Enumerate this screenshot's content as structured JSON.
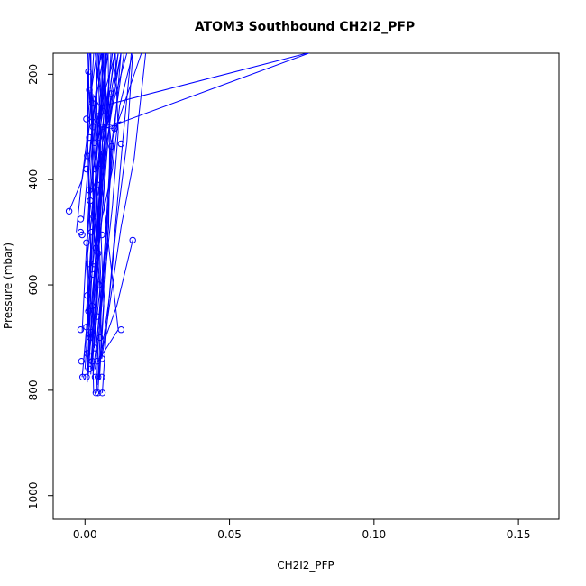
{
  "chart_data": {
    "type": "line",
    "title": "ATOM3 Southbound CH2I2_PFP",
    "xlabel": "CH2I2_PFP",
    "ylabel": "Pressure (mbar)",
    "xlim": [
      -0.011,
      0.164
    ],
    "ylim": [
      1045,
      160
    ],
    "y_reversed": true,
    "x_ticks": [
      0.0,
      0.05,
      0.1,
      0.15
    ],
    "x_tick_labels": [
      "0.00",
      "0.05",
      "0.10",
      "0.15"
    ],
    "y_ticks": [
      200,
      400,
      600,
      800,
      1000
    ],
    "y_tick_labels": [
      "200",
      "400",
      "600",
      "800",
      "1000"
    ],
    "grid": false,
    "legend": "none",
    "color": "#0000ff",
    "profiles": [
      {
        "x": [
          0.0008,
          0.002,
          0.0035,
          0.005,
          0.006
        ],
        "y": [
          775,
          680,
          560,
          420,
          160
        ]
      },
      {
        "x": [
          0.0012,
          0.0025,
          0.004,
          0.0055,
          0.0045
        ],
        "y": [
          770,
          650,
          520,
          380,
          160
        ]
      },
      {
        "x": [
          -0.001,
          0.0005,
          0.0015,
          0.003,
          0.002
        ],
        "y": [
          775,
          690,
          600,
          460,
          160
        ]
      },
      {
        "x": [
          0.0,
          0.0012,
          0.002,
          0.0008,
          0.0015
        ],
        "y": [
          760,
          660,
          540,
          300,
          160
        ]
      },
      {
        "x": [
          0.002,
          0.0035,
          0.005,
          0.007,
          0.009
        ],
        "y": [
          750,
          640,
          500,
          330,
          160
        ]
      },
      {
        "x": [
          0.004,
          0.0045,
          0.0065,
          0.009,
          0.0195
        ],
        "y": [
          805,
          720,
          560,
          330,
          160
        ]
      },
      {
        "x": [
          0.003,
          0.0025,
          0.004,
          0.006,
          0.0105
        ],
        "y": [
          805,
          700,
          520,
          330,
          160
        ]
      },
      {
        "x": [
          0.006,
          0.0075,
          0.01,
          0.013,
          0.016
        ],
        "y": [
          805,
          680,
          520,
          330,
          160
        ]
      },
      {
        "x": [
          -0.0005,
          0.0015,
          0.003,
          0.0045,
          0.0075
        ],
        "y": [
          745,
          620,
          480,
          300,
          160
        ]
      },
      {
        "x": [
          0.0015,
          0.0045,
          0.0025,
          0.0065,
          0.0035
        ],
        "y": [
          730,
          600,
          450,
          280,
          160
        ]
      },
      {
        "x": [
          -0.001,
          0.0,
          0.0015,
          0.003,
          0.005
        ],
        "y": [
          690,
          580,
          430,
          280,
          160
        ]
      },
      {
        "x": [
          0.0005,
          0.002,
          0.0035,
          0.0055,
          0.008
        ],
        "y": [
          720,
          560,
          400,
          260,
          160
        ]
      },
      {
        "x": [
          0.001,
          0.0035,
          0.006,
          0.0085,
          0.0115
        ],
        "y": [
          745,
          610,
          460,
          290,
          160
        ]
      },
      {
        "x": [
          0.0025,
          0.004,
          0.005,
          0.007,
          0.0065
        ],
        "y": [
          760,
          630,
          470,
          310,
          160
        ]
      },
      {
        "x": [
          0.0045,
          0.0055,
          0.0075,
          0.0095,
          0.0135
        ],
        "y": [
          790,
          660,
          500,
          320,
          160
        ]
      },
      {
        "x": [
          0.0015,
          0.0005,
          0.003,
          0.002,
          0.004
        ],
        "y": [
          700,
          560,
          440,
          240,
          160
        ]
      },
      {
        "x": [
          0.002,
          0.0045,
          0.0025,
          0.0055,
          0.0045
        ],
        "y": [
          770,
          560,
          410,
          230,
          160
        ]
      },
      {
        "x": [
          0.001,
          0.0022,
          0.004,
          0.0025,
          0.0065
        ],
        "y": [
          740,
          600,
          420,
          290,
          160
        ]
      },
      {
        "x": [
          -0.003,
          -0.0015,
          0.0005,
          0.0015,
          0.001
        ],
        "y": [
          500,
          420,
          330,
          250,
          160
        ]
      },
      {
        "x": [
          -0.0055,
          -0.001,
          0.001,
          0.002,
          0.003
        ],
        "y": [
          460,
          400,
          330,
          250,
          160
        ]
      },
      {
        "x": [
          -0.0005,
          0.001,
          0.0025,
          0.004,
          0.0055
        ],
        "y": [
          475,
          380,
          300,
          220,
          160
        ]
      },
      {
        "x": [
          0.0035,
          0.006,
          0.0095,
          0.012,
          0.0165
        ],
        "y": [
          560,
          470,
          380,
          260,
          160
        ]
      },
      {
        "x": [
          0.0045,
          0.0058,
          0.0078,
          0.009,
          0.006
        ],
        "y": [
          800,
          690,
          520,
          330,
          160
        ]
      },
      {
        "x": [
          0.002,
          0.0035,
          0.005,
          0.006,
          0.0145
        ],
        "y": [
          760,
          650,
          500,
          330,
          160
        ]
      },
      {
        "x": [
          0.0008,
          0.002,
          0.0045,
          0.0035,
          0.0105
        ],
        "y": [
          785,
          600,
          470,
          300,
          160
        ]
      },
      {
        "x": [
          0.0035,
          0.0065,
          0.0095,
          0.0115,
          0.0105
        ],
        "y": [
          760,
          600,
          450,
          310,
          160
        ]
      },
      {
        "x": [
          0.0015,
          0.0008,
          0.0028,
          0.0042,
          0.0058
        ],
        "y": [
          680,
          520,
          360,
          200,
          160
        ]
      },
      {
        "x": [
          0.0025,
          0.0055,
          0.004,
          0.006,
          0.0075
        ],
        "y": [
          745,
          590,
          420,
          250,
          160
        ]
      },
      {
        "x": [
          0.0032,
          0.0048,
          0.0015,
          0.0062,
          0.0072
        ],
        "y": [
          720,
          580,
          430,
          270,
          160
        ]
      },
      {
        "x": [
          0.0005,
          0.002,
          0.0012,
          0.0028,
          0.0018
        ],
        "y": [
          650,
          530,
          400,
          270,
          160
        ]
      },
      {
        "x": [
          0.0055,
          0.0085,
          0.011,
          0.0145,
          0.0165
        ],
        "y": [
          740,
          620,
          480,
          330,
          160
        ]
      },
      {
        "x": [
          0.0012,
          0.0038,
          0.0058,
          0.0075,
          0.0125
        ],
        "y": [
          700,
          540,
          380,
          290,
          160
        ]
      },
      {
        "x": [
          0.005,
          0.0065,
          0.0055,
          0.0075,
          0.007
        ],
        "y": [
          780,
          640,
          500,
          330,
          160
        ]
      },
      {
        "x": [
          0.0028,
          0.0052,
          0.0082,
          0.0085,
          0.008
        ],
        "y": [
          770,
          650,
          490,
          350,
          160
        ]
      },
      {
        "x": [
          0.0058,
          0.009,
          0.0125,
          0.017,
          0.021
        ],
        "y": [
          740,
          620,
          490,
          360,
          160
        ]
      },
      {
        "x": [
          0.0165,
          0.011,
          0.0058,
          0.0045,
          0.0075
        ],
        "y": [
          515,
          640,
          720,
          500,
          160
        ]
      },
      {
        "x": [
          0.0045,
          0.0115,
          0.006,
          0.0042,
          0.004
        ],
        "y": [
          745,
          685,
          420,
          300,
          160
        ]
      },
      {
        "x": [
          0.0038,
          0.0125,
          0.0075,
          0.0035,
          0.0018
        ],
        "y": [
          728,
          157,
          330,
          560,
          560
        ]
      },
      {
        "x": [
          0.0055,
          0.0095,
          0.0125,
          0.0058,
          0.0042,
          0.0038,
          0.0035
        ],
        "y": [
          300,
          303,
          290,
          300,
          420,
          520,
          560
        ]
      },
      {
        "x": [
          0.0058,
          0.079,
          0.0062,
          0.0045
        ],
        "y": [
          305,
          157,
          260,
          300
        ]
      },
      {
        "x": [
          0.0015,
          0.0025,
          0.003,
          0.0058,
          0.0062
        ],
        "y": [
          230,
          290,
          240,
          270,
          160
        ]
      },
      {
        "x": [
          0.001,
          0.001,
          0.0015,
          0.002,
          0.002
        ],
        "y": [
          195,
          320,
          300,
          260,
          160
        ]
      },
      {
        "x": [
          0.009,
          0.0085,
          0.006,
          0.0055
        ],
        "y": [
          237,
          290,
          180,
          160
        ]
      },
      {
        "x": [
          0.0065,
          0.0075,
          0.0085,
          0.0095
        ],
        "y": [
          310,
          260,
          200,
          160
        ]
      },
      {
        "x": [
          0.0065,
          0.0075,
          0.0095,
          0.0115
        ],
        "y": [
          370,
          300,
          220,
          160
        ]
      },
      {
        "x": [
          0.0045,
          0.0062,
          0.0082,
          0.0102
        ],
        "y": [
          430,
          350,
          250,
          160
        ]
      }
    ],
    "markers": [
      {
        "x": -0.0055,
        "y": 460
      },
      {
        "x": -0.0015,
        "y": 475
      },
      {
        "x": -0.0015,
        "y": 500
      },
      {
        "x": -0.001,
        "y": 505
      },
      {
        "x": -0.0015,
        "y": 685
      },
      {
        "x": -0.0012,
        "y": 745
      },
      {
        "x": -0.0008,
        "y": 775
      },
      {
        "x": 0.0005,
        "y": 775
      },
      {
        "x": 0.0015,
        "y": 760
      },
      {
        "x": 0.0025,
        "y": 745
      },
      {
        "x": 0.0035,
        "y": 775
      },
      {
        "x": 0.0045,
        "y": 775
      },
      {
        "x": 0.0058,
        "y": 775
      },
      {
        "x": 0.0058,
        "y": 740
      },
      {
        "x": 0.0045,
        "y": 805
      },
      {
        "x": 0.0038,
        "y": 805
      },
      {
        "x": 0.006,
        "y": 805
      },
      {
        "x": 0.0125,
        "y": 685
      },
      {
        "x": 0.0165,
        "y": 515
      },
      {
        "x": 0.0012,
        "y": 195
      },
      {
        "x": 0.0015,
        "y": 230
      },
      {
        "x": 0.009,
        "y": 237
      },
      {
        "x": 0.0005,
        "y": 285
      },
      {
        "x": 0.0025,
        "y": 290
      },
      {
        "x": 0.0058,
        "y": 300
      },
      {
        "x": 0.0102,
        "y": 303
      },
      {
        "x": 0.0125,
        "y": 332
      },
      {
        "x": 0.0092,
        "y": 337
      },
      {
        "x": 0.0062,
        "y": 270
      },
      {
        "x": 0.0055,
        "y": 370
      },
      {
        "x": 0.0015,
        "y": 320
      },
      {
        "x": 0.0032,
        "y": 330
      },
      {
        "x": 0.0005,
        "y": 380
      },
      {
        "x": 0.0042,
        "y": 410
      },
      {
        "x": 0.0018,
        "y": 440
      },
      {
        "x": 0.003,
        "y": 470
      },
      {
        "x": 0.0005,
        "y": 520
      },
      {
        "x": 0.0022,
        "y": 500
      },
      {
        "x": 0.0038,
        "y": 530
      },
      {
        "x": 0.0058,
        "y": 505
      },
      {
        "x": 0.0012,
        "y": 560
      },
      {
        "x": 0.0028,
        "y": 580
      },
      {
        "x": 0.0048,
        "y": 600
      },
      {
        "x": 0.0008,
        "y": 620
      },
      {
        "x": 0.0025,
        "y": 640
      },
      {
        "x": 0.0042,
        "y": 660
      },
      {
        "x": 0.0005,
        "y": 680
      },
      {
        "x": 0.0018,
        "y": 700
      },
      {
        "x": 0.0035,
        "y": 720
      },
      {
        "x": 0.0052,
        "y": 700
      },
      {
        "x": 0.0008,
        "y": 730
      },
      {
        "x": 0.0022,
        "y": 690
      },
      {
        "x": 0.0042,
        "y": 745
      },
      {
        "x": 0.0012,
        "y": 650
      },
      {
        "x": 0.0032,
        "y": 560
      },
      {
        "x": 0.0045,
        "y": 540
      },
      {
        "x": 0.0015,
        "y": 420
      },
      {
        "x": 0.0035,
        "y": 380
      },
      {
        "x": 0.0028,
        "y": 300
      },
      {
        "x": 0.0048,
        "y": 320
      },
      {
        "x": 0.0008,
        "y": 355
      },
      {
        "x": 0.0025,
        "y": 255
      },
      {
        "x": 0.0045,
        "y": 280
      },
      {
        "x": 0.0065,
        "y": 350
      }
    ]
  }
}
